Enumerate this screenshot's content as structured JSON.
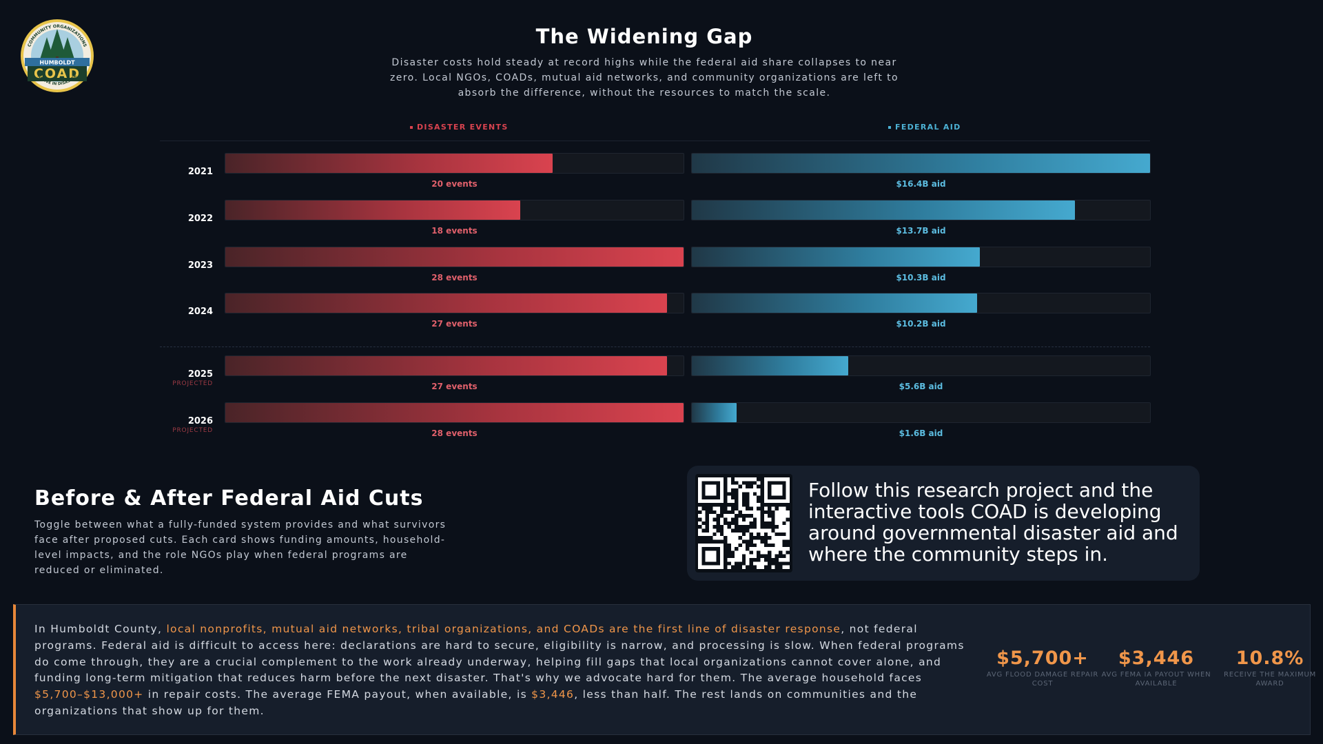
{
  "logo": {
    "arc_top": "COMMUNITY ORGANIZATIONS",
    "banner": "HUMBOLDT",
    "name": "COAD",
    "arc_bottom": "ACTIVE IN DISASTER"
  },
  "header": {
    "title": "The Widening Gap",
    "subtitle": "Disaster costs hold steady at record highs while the federal aid share collapses to near zero. Local NGOs, COADs, mutual aid networks, and community organizations are left to absorb the difference, without the resources to match the scale."
  },
  "chart_data": {
    "type": "bar",
    "orientation": "horizontal",
    "layout": "paired",
    "categories": [
      "2021",
      "2022",
      "2023",
      "2024",
      "2025",
      "2026"
    ],
    "projected": [
      false,
      false,
      false,
      false,
      true,
      true
    ],
    "projected_label": "PROJECTED",
    "series": [
      {
        "name": "DISASTER EVENTS",
        "unit": "events",
        "values": [
          20,
          18,
          28,
          27,
          27,
          28
        ],
        "max": 28,
        "labels": [
          "20 events",
          "18 events",
          "28 events",
          "27 events",
          "27 events",
          "28 events"
        ],
        "color": "#d9434f"
      },
      {
        "name": "FEDERAL AID",
        "unit": "$B",
        "values": [
          16.4,
          13.7,
          10.3,
          10.2,
          5.6,
          1.6
        ],
        "max": 16.4,
        "labels": [
          "$16.4B aid",
          "$13.7B aid",
          "$10.3B aid",
          "$10.2B aid",
          "$5.6B aid",
          "$1.6B aid"
        ],
        "color": "#4cb1d4"
      }
    ]
  },
  "before_after": {
    "title": "Before & After Federal Aid Cuts",
    "text": "Toggle between what a fully-funded system provides and what survivors face after proposed cuts. Each card shows funding amounts, household-level impacts, and the role NGOs play when federal programs are reduced or eliminated."
  },
  "qr_card": {
    "text": "Follow this research project and the interactive tools COAD is developing around governmental disaster aid and where the community steps in."
  },
  "bottom": {
    "p1": "In Humboldt County, ",
    "h1": "local nonprofits, mutual aid networks, tribal organizations, and COADs are the first line of disaster response",
    "p2": ", not federal programs. Federal aid is difficult to access here: declarations are hard to secure, eligibility is narrow, and processing is slow. When federal programs do come through, they are a crucial complement to the work already underway, helping fill gaps that local organizations cannot cover alone, and funding long-term mitigation that reduces harm before the next disaster. That's why we advocate hard for them. The average household faces ",
    "h2": "$5,700–$13,000+",
    "p3": " in repair costs. The average FEMA payout, when available, is ",
    "h3": "$3,446",
    "p4": ", less than half. The rest lands on communities and the organizations that show up for them.",
    "stats": [
      {
        "value": "$5,700+",
        "label": "AVG FLOOD DAMAGE REPAIR COST"
      },
      {
        "value": "$3,446",
        "label": "AVG FEMA IA PAYOUT WHEN AVAILABLE"
      },
      {
        "value": "10.8%",
        "label": "RECEIVE THE MAXIMUM AWARD"
      }
    ]
  },
  "colors": {
    "background": "#0b1019",
    "events": "#d9434f",
    "aid": "#4cb1d4",
    "accent": "#f0964a"
  }
}
